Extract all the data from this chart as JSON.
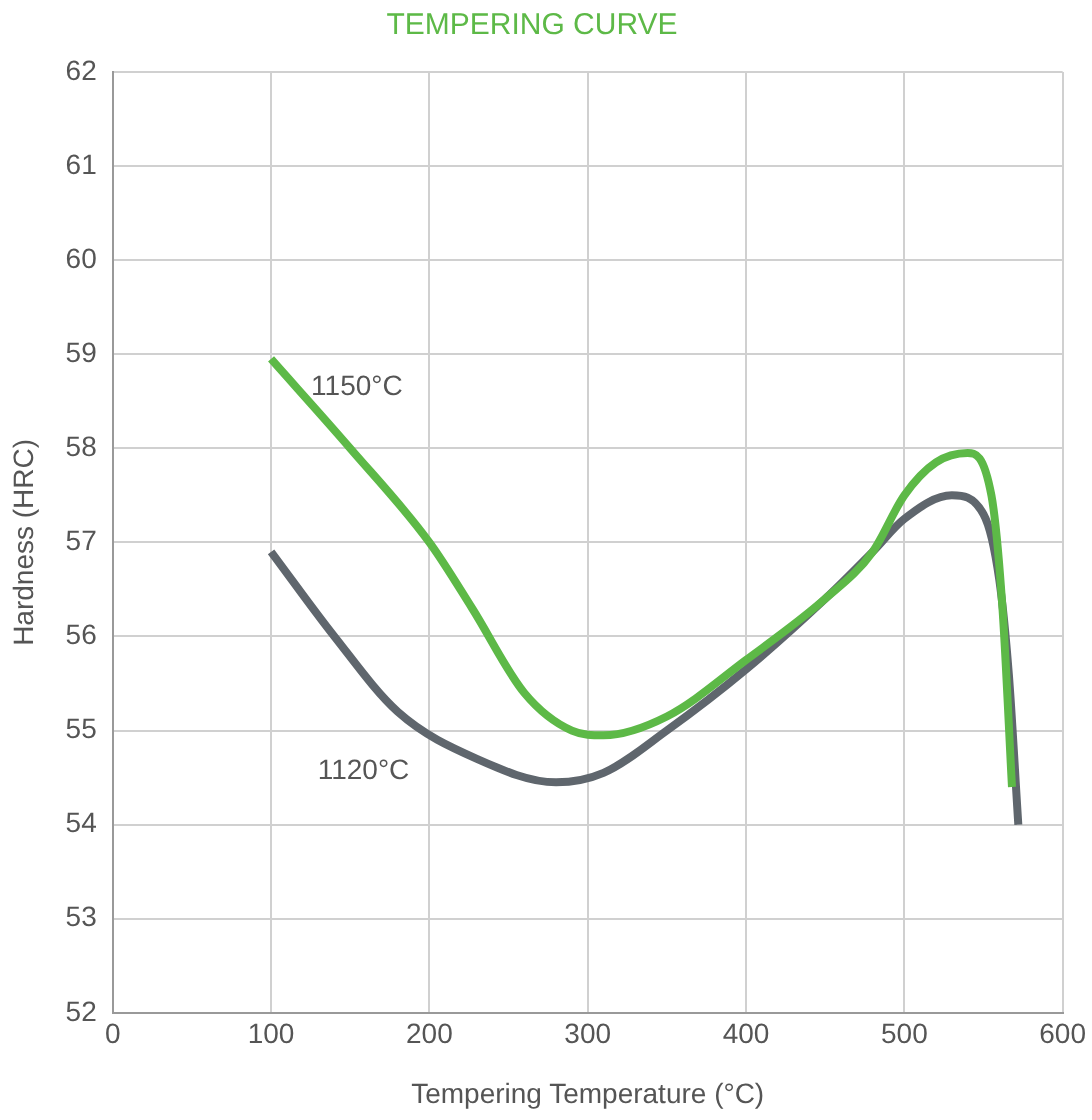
{
  "chart_data": {
    "type": "line",
    "title": "TEMPERING CURVE",
    "xlabel": "Tempering Temperature (°C)",
    "ylabel": "Hardness (HRC)",
    "series": [
      {
        "name": "1150°C",
        "color": "#5db947",
        "x": [
          100,
          150,
          200,
          227,
          260,
          290,
          310,
          350,
          400,
          450,
          480,
          500,
          520,
          540,
          555,
          562,
          568
        ],
        "values": [
          58.95,
          58.0,
          57.0,
          56.3,
          55.4,
          55.0,
          54.95,
          55.15,
          55.75,
          56.4,
          56.9,
          57.5,
          57.85,
          57.95,
          57.5,
          56.3,
          54.4
        ]
      },
      {
        "name": "1120°C",
        "color": "#5f666d",
        "x": [
          100,
          140,
          180,
          230,
          280,
          310,
          350,
          400,
          450,
          480,
          500,
          530,
          550,
          560,
          566,
          572
        ],
        "values": [
          56.9,
          56.0,
          55.2,
          54.7,
          54.45,
          54.55,
          55.0,
          55.65,
          56.4,
          56.9,
          57.25,
          57.5,
          57.3,
          56.6,
          55.6,
          54.0
        ]
      }
    ],
    "xlim": [
      0,
      600
    ],
    "xticks": [
      0,
      100,
      200,
      300,
      400,
      500,
      600
    ],
    "ylim": [
      52,
      62
    ],
    "yticks": [
      52,
      53,
      54,
      55,
      56,
      57,
      58,
      59,
      60,
      61,
      62
    ],
    "grid": true,
    "legend": false,
    "marker": "none",
    "line_style": "solid"
  }
}
